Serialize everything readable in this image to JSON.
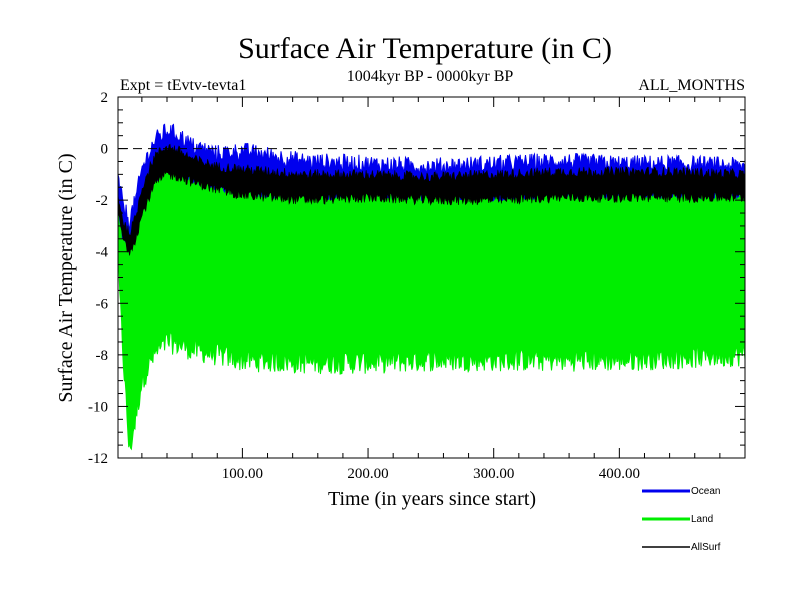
{
  "chart_data": {
    "type": "line",
    "title": "Surface Air Temperature (in C)",
    "subtitle_left": "Expt = tEvtv-tevta1",
    "subtitle_center": "1004kyr BP - 0000kyr BP",
    "subtitle_right": "ALL_MONTHS",
    "xlabel": "Time (in years since start)",
    "ylabel": "Surface Air Temperature (in C)",
    "xlim": [
      1,
      500
    ],
    "ylim": [
      -12,
      2
    ],
    "x_ticks": [
      100,
      200,
      300,
      400
    ],
    "x_tick_labels": [
      "100.00",
      "200.00",
      "300.00",
      "400.00"
    ],
    "y_ticks": [
      2,
      0,
      -2,
      -4,
      -6,
      -8,
      -10,
      -12
    ],
    "y_tick_labels": [
      "2",
      "0",
      "-2",
      "-4",
      "-6",
      "-8",
      "-10",
      "-12"
    ],
    "reference_line": 0,
    "series": [
      {
        "name": "Land",
        "color": "#00ee00",
        "x": [
          1,
          5,
          10,
          15,
          20,
          30,
          40,
          50,
          60,
          80,
          100,
          150,
          200,
          250,
          300,
          350,
          400,
          450,
          500
        ],
        "upper": [
          -1.8,
          -3.0,
          -3.5,
          -3.0,
          -1.8,
          -0.5,
          -0.2,
          -0.3,
          -0.5,
          -0.9,
          -1.2,
          -1.4,
          -1.3,
          -1.4,
          -1.4,
          -1.3,
          -1.2,
          -1.2,
          -1.2
        ],
        "lower": [
          -4.5,
          -8.0,
          -11.8,
          -10.5,
          -9.0,
          -8.0,
          -7.5,
          -7.6,
          -7.8,
          -8.0,
          -8.2,
          -8.3,
          -8.3,
          -8.2,
          -8.2,
          -8.2,
          -8.2,
          -8.1,
          -8.0
        ]
      },
      {
        "name": "Ocean",
        "color": "#0000ee",
        "x": [
          1,
          5,
          10,
          15,
          20,
          30,
          40,
          50,
          60,
          80,
          100,
          150,
          200,
          250,
          300,
          350,
          400,
          450,
          500
        ],
        "upper": [
          -1.2,
          -2.2,
          -2.8,
          -2.0,
          -0.8,
          0.3,
          0.7,
          0.5,
          0.1,
          -0.2,
          -0.1,
          -0.5,
          -0.6,
          -0.7,
          -0.6,
          -0.5,
          -0.6,
          -0.6,
          -0.7
        ],
        "lower": [
          -2.2,
          -3.3,
          -3.8,
          -3.3,
          -2.3,
          -1.0,
          -0.6,
          -0.7,
          -1.0,
          -1.3,
          -1.5,
          -1.7,
          -1.6,
          -1.7,
          -1.7,
          -1.6,
          -1.6,
          -1.6,
          -1.6
        ]
      },
      {
        "name": "AllSurf",
        "color": "#000000",
        "x": [
          1,
          5,
          10,
          15,
          20,
          30,
          40,
          50,
          60,
          80,
          100,
          150,
          200,
          250,
          300,
          350,
          400,
          450,
          500
        ],
        "upper": [
          -1.8,
          -2.8,
          -3.3,
          -2.7,
          -1.5,
          -0.3,
          0.1,
          -0.1,
          -0.4,
          -0.7,
          -0.8,
          -1.0,
          -1.0,
          -1.1,
          -1.0,
          -0.9,
          -0.9,
          -0.9,
          -1.0
        ],
        "lower": [
          -2.5,
          -3.5,
          -4.0,
          -3.5,
          -2.6,
          -1.4,
          -1.0,
          -1.1,
          -1.3,
          -1.6,
          -1.8,
          -2.0,
          -1.9,
          -2.0,
          -2.0,
          -1.9,
          -1.9,
          -1.9,
          -1.9
        ]
      }
    ],
    "legend": [
      "Ocean",
      "Land",
      "AllSurf"
    ],
    "legend_position": "bottom-right"
  }
}
